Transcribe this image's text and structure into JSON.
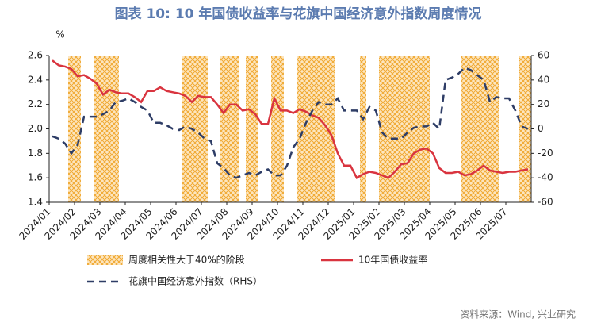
{
  "chart_data": {
    "type": "combo",
    "title": "图表 10: 10 年国债收益率与花旗中国经济意外指数周度情况",
    "ylabel": "%",
    "source": "资料来源：Wind, 兴业研究",
    "categories": [
      "2024/01",
      null,
      null,
      null,
      "2024/02",
      null,
      null,
      null,
      "2024/03",
      null,
      null,
      null,
      "2024/04",
      null,
      null,
      null,
      "2024/05",
      null,
      null,
      null,
      "2024/06",
      null,
      null,
      null,
      "2024/07",
      null,
      null,
      null,
      "2024/08",
      null,
      null,
      null,
      "2024/09",
      null,
      null,
      null,
      "2024/10",
      null,
      null,
      null,
      "2024/11",
      null,
      null,
      null,
      "2024/12",
      null,
      null,
      null,
      "2025/01",
      null,
      null,
      null,
      "2025/02",
      null,
      null,
      null,
      "2025/03",
      null,
      null,
      null,
      "2025/04",
      null,
      null,
      null,
      "2025/05",
      null,
      null,
      null,
      "2025/06",
      null,
      null,
      null,
      "2025/07",
      null,
      null,
      null
    ],
    "ylim": [
      1.4,
      2.6
    ],
    "yticks": [
      1.4,
      1.6,
      1.8,
      {
        "value": 2,
        "label": "2.0"
      },
      2.2,
      2.4,
      2.6
    ],
    "y2lim": [
      -60,
      60
    ],
    "y2ticks": [
      -60,
      -40,
      -20,
      0,
      20,
      40,
      60
    ],
    "series": [
      {
        "name": "周度相关性大于40%的阶段",
        "type": "bar",
        "axis": "y2",
        "color": "#f0a830",
        "values": [
          null,
          null,
          null,
          60,
          60,
          null,
          null,
          60,
          60,
          60,
          60,
          null,
          null,
          null,
          null,
          null,
          null,
          null,
          null,
          null,
          null,
          60,
          60,
          60,
          60,
          null,
          null,
          60,
          60,
          60,
          null,
          60,
          60,
          null,
          null,
          60,
          60,
          null,
          null,
          60,
          60,
          60,
          60,
          60,
          60,
          null,
          null,
          null,
          null,
          60,
          null,
          null,
          60,
          60,
          60,
          60,
          60,
          60,
          60,
          60,
          null,
          null,
          null,
          null,
          null,
          60,
          60,
          60,
          60,
          60,
          60,
          null,
          null,
          null,
          60,
          60
        ]
      },
      {
        "name": "10年国债收益率",
        "type": "line",
        "color": "#d9343f",
        "values": [
          2.56,
          2.52,
          2.51,
          2.49,
          2.43,
          2.44,
          2.41,
          2.37,
          2.28,
          2.32,
          2.3,
          2.29,
          2.29,
          2.26,
          2.22,
          2.31,
          2.31,
          2.34,
          2.31,
          2.3,
          2.29,
          2.27,
          2.22,
          2.27,
          2.26,
          2.26,
          2.2,
          2.13,
          2.2,
          2.2,
          2.15,
          2.16,
          2.12,
          2.04,
          2.04,
          2.25,
          2.15,
          2.15,
          2.13,
          2.16,
          2.14,
          2.11,
          2.09,
          2.03,
          1.95,
          1.8,
          1.7,
          1.7,
          1.6,
          1.63,
          1.65,
          1.64,
          1.62,
          1.6,
          1.65,
          1.71,
          1.72,
          1.8,
          1.83,
          1.84,
          1.8,
          1.68,
          1.64,
          1.64,
          1.65,
          1.62,
          1.63,
          1.66,
          1.7,
          1.66,
          1.65,
          1.64,
          1.65,
          1.65,
          1.66,
          1.67
        ]
      },
      {
        "name": "花旗中国经济意外指数（RHS）",
        "type": "dashed",
        "axis": "y2",
        "color": "#2e3d66",
        "values": [
          -6,
          -8,
          -12,
          -20,
          -13,
          10,
          10,
          10,
          12,
          15,
          22,
          23,
          25,
          22,
          18,
          15,
          5,
          5,
          3,
          0,
          -1,
          2,
          0,
          -3,
          -8,
          -10,
          -28,
          -32,
          -38,
          -40,
          -38,
          -36,
          -38,
          -35,
          -33,
          -38,
          -38,
          -30,
          -15,
          -8,
          5,
          15,
          22,
          20,
          20,
          25,
          15,
          15,
          15,
          8,
          18,
          15,
          -3,
          -8,
          -8,
          -8,
          -3,
          1,
          2,
          2,
          5,
          0,
          40,
          42,
          45,
          50,
          48,
          44,
          40,
          22,
          26,
          25,
          25,
          15,
          2,
          0
        ]
      }
    ]
  }
}
